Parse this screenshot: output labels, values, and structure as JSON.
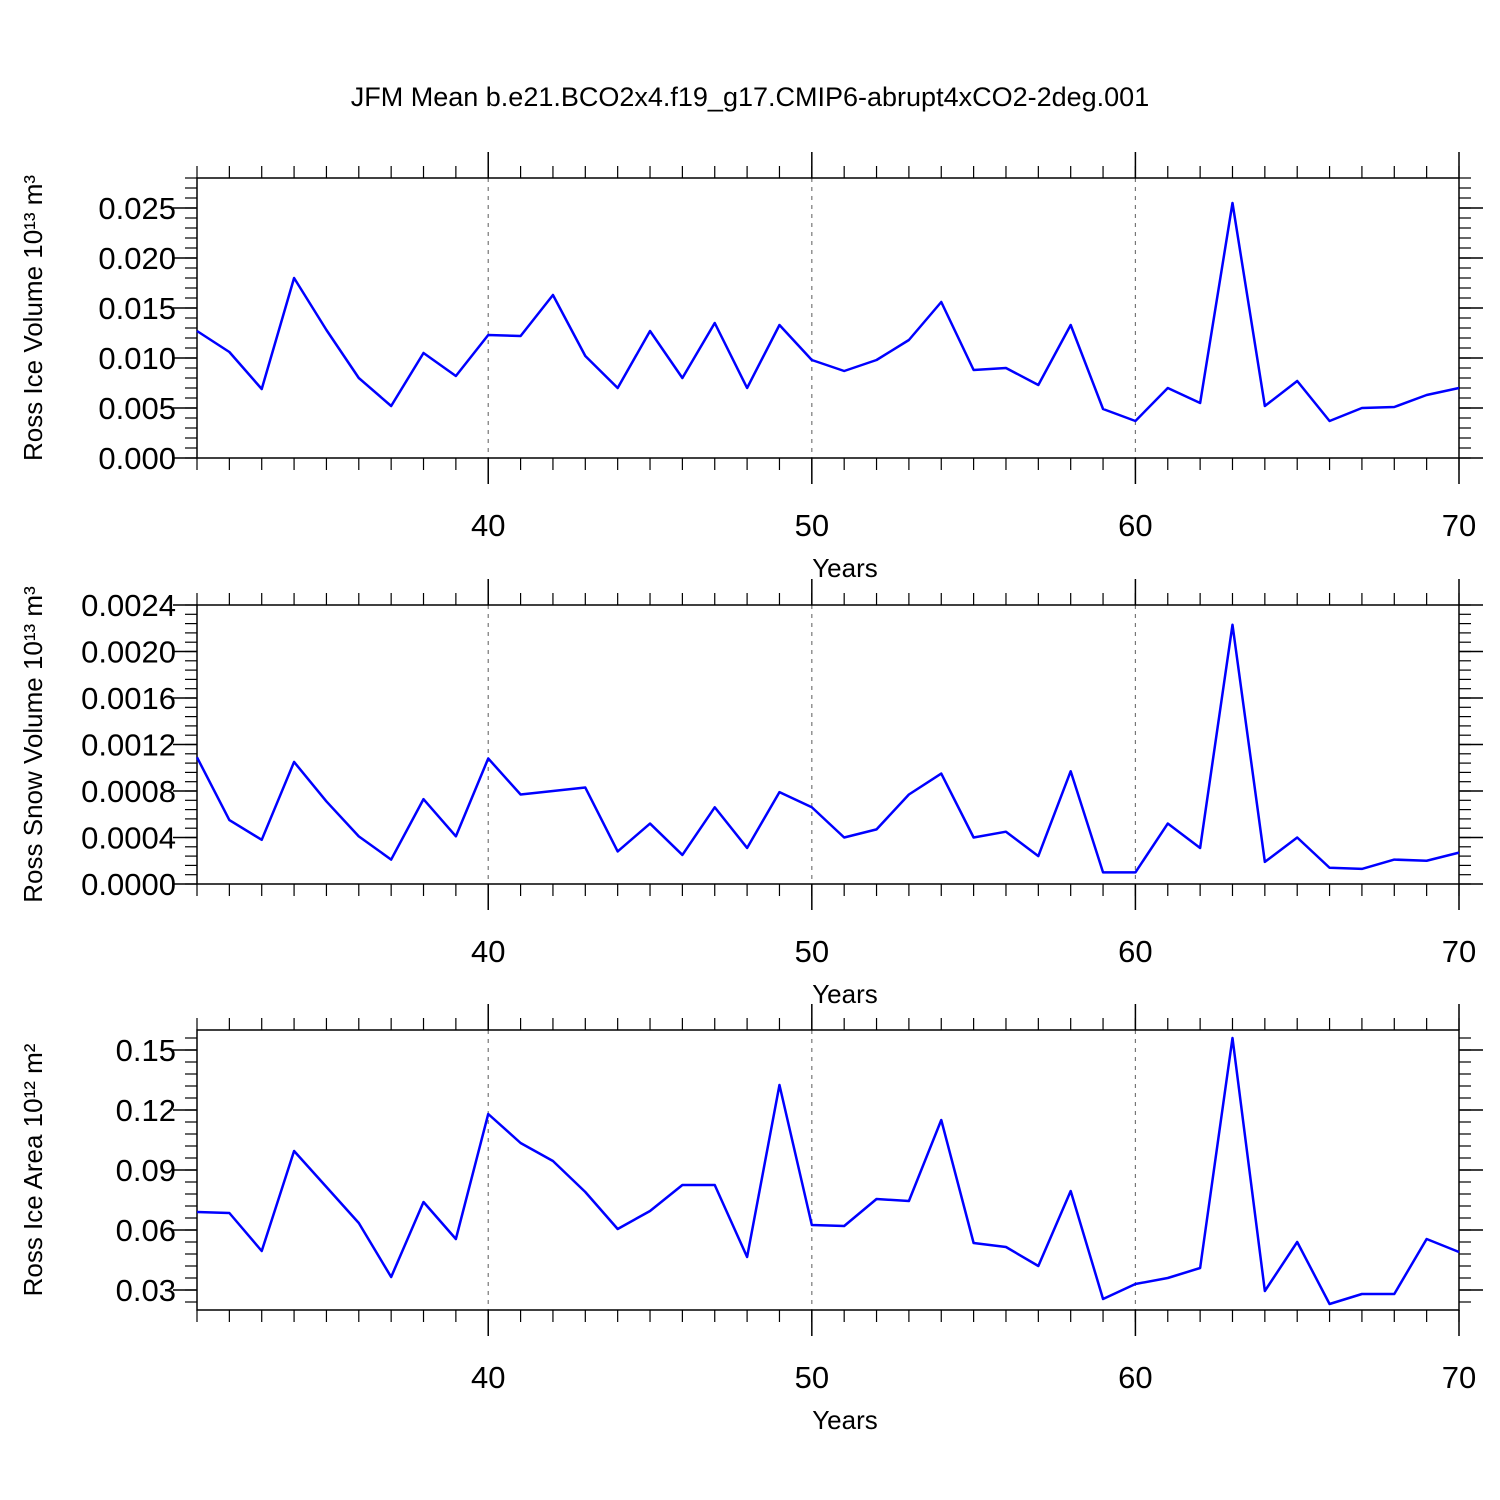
{
  "title": "JFM Mean b.e21.BCO2x4.f19_g17.CMIP6-abrupt4xCO2-2deg.001",
  "chart_data": [
    {
      "type": "line",
      "xlabel": "Years",
      "ylabel": "Ross Ice Volume 10¹³ m³",
      "x": [
        31,
        32,
        33,
        34,
        35,
        36,
        37,
        38,
        39,
        40,
        41,
        42,
        43,
        44,
        45,
        46,
        47,
        48,
        49,
        50,
        51,
        52,
        53,
        54,
        55,
        56,
        57,
        58,
        59,
        60,
        61,
        62,
        63,
        64,
        65,
        66,
        67,
        68,
        69,
        70
      ],
      "values": [
        0.0127,
        0.0106,
        0.0069,
        0.018,
        0.0128,
        0.008,
        0.0052,
        0.0105,
        0.0082,
        0.0123,
        0.0122,
        0.0163,
        0.0102,
        0.007,
        0.0127,
        0.008,
        0.0135,
        0.007,
        0.0133,
        0.0098,
        0.0087,
        0.0098,
        0.0118,
        0.0156,
        0.0088,
        0.009,
        0.0073,
        0.0133,
        0.0049,
        0.0037,
        0.007,
        0.0055,
        0.0255,
        0.0052,
        0.0077,
        0.0037,
        0.005,
        0.0051,
        0.0063,
        0.007
      ],
      "color": "#0000ff",
      "xlim": [
        31,
        70
      ],
      "xticks": [
        40,
        50,
        60,
        70
      ],
      "ylim": [
        0,
        0.028
      ],
      "yticks": [
        {
          "value": 0,
          "label": "0.000"
        },
        {
          "value": 0.005,
          "label": "0.005"
        },
        {
          "value": 0.01,
          "label": "0.010"
        },
        {
          "value": 0.015,
          "label": "0.015"
        },
        {
          "value": 0.02,
          "label": "0.020"
        },
        {
          "value": 0.025,
          "label": "0.025"
        }
      ],
      "grid": "x"
    },
    {
      "type": "line",
      "xlabel": "Years",
      "ylabel": "Ross Snow Volume 10¹³ m³",
      "x": [
        31,
        32,
        33,
        34,
        35,
        36,
        37,
        38,
        39,
        40,
        41,
        42,
        43,
        44,
        45,
        46,
        47,
        48,
        49,
        50,
        51,
        52,
        53,
        54,
        55,
        56,
        57,
        58,
        59,
        60,
        61,
        62,
        63,
        64,
        65,
        66,
        67,
        68,
        69,
        70
      ],
      "values": [
        0.00109,
        0.00055,
        0.00038,
        0.00105,
        0.00071,
        0.00041,
        0.00021,
        0.00073,
        0.00041,
        0.00108,
        0.00077,
        0.0008,
        0.00083,
        0.00028,
        0.00052,
        0.00025,
        0.00066,
        0.00031,
        0.00079,
        0.00066,
        0.0004,
        0.00047,
        0.00077,
        0.00095,
        0.0004,
        0.00045,
        0.00024,
        0.00097,
        0.0001,
        0.0001,
        0.00052,
        0.00031,
        0.00223,
        0.00019,
        0.0004,
        0.00014,
        0.00013,
        0.00021,
        0.0002,
        0.00027
      ],
      "color": "#0000ff",
      "xlim": [
        31,
        70
      ],
      "xticks": [
        40,
        50,
        60,
        70
      ],
      "ylim": [
        0,
        0.0024
      ],
      "yticks": [
        {
          "value": 0,
          "label": "0.0000"
        },
        {
          "value": 0.0004,
          "label": "0.0004"
        },
        {
          "value": 0.0008,
          "label": "0.0008"
        },
        {
          "value": 0.0012,
          "label": "0.0012"
        },
        {
          "value": 0.0016,
          "label": "0.0016"
        },
        {
          "value": 0.002,
          "label": "0.0020"
        },
        {
          "value": 0.0024,
          "label": "0.0024"
        }
      ],
      "grid": "x"
    },
    {
      "type": "line",
      "xlabel": "Years",
      "ylabel": "Ross Ice Area 10¹² m²",
      "x": [
        31,
        32,
        33,
        34,
        35,
        36,
        37,
        38,
        39,
        40,
        41,
        42,
        43,
        44,
        45,
        46,
        47,
        48,
        49,
        50,
        51,
        52,
        53,
        54,
        55,
        56,
        57,
        58,
        59,
        60,
        61,
        62,
        63,
        64,
        65,
        66,
        67,
        68,
        69,
        70
      ],
      "values": [
        0.069,
        0.0685,
        0.0495,
        0.0995,
        0.0815,
        0.0635,
        0.0365,
        0.074,
        0.0555,
        0.118,
        0.1035,
        0.0945,
        0.079,
        0.0605,
        0.0695,
        0.0825,
        0.0825,
        0.0465,
        0.1325,
        0.0625,
        0.062,
        0.0755,
        0.0745,
        0.115,
        0.0535,
        0.0515,
        0.042,
        0.0795,
        0.0255,
        0.033,
        0.036,
        0.041,
        0.156,
        0.0295,
        0.054,
        0.023,
        0.028,
        0.028,
        0.0555,
        0.049
      ],
      "color": "#0000ff",
      "xlim": [
        31,
        70
      ],
      "xticks": [
        40,
        50,
        60,
        70
      ],
      "ylim": [
        0.02,
        0.16
      ],
      "yticks": [
        0.03,
        0.06,
        0.09,
        0.12,
        0.15
      ],
      "grid": "x"
    }
  ]
}
